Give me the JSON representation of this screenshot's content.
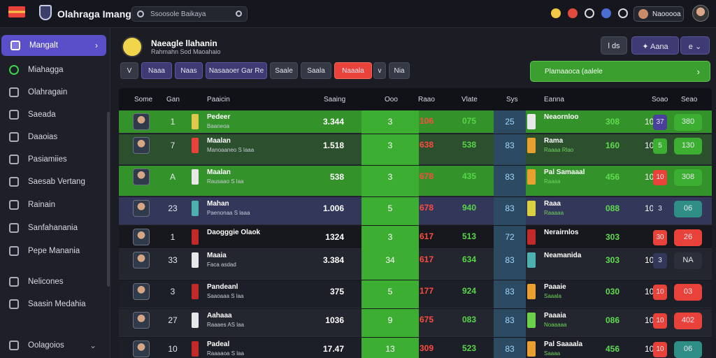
{
  "topbar": {
    "title": "Olahraga Imangah",
    "search_placeholder": "Ssoosole Baikaya",
    "user_label": "Naooooa"
  },
  "sidebar": {
    "items": [
      {
        "label": "Mangalt",
        "active": true
      },
      {
        "label": "Miahagga"
      },
      {
        "label": "Olahragain"
      },
      {
        "label": "Saeada"
      },
      {
        "label": "Daaoias"
      },
      {
        "label": "Pasiamiies"
      },
      {
        "label": "Saesab Vertang"
      },
      {
        "label": "Rainain"
      },
      {
        "label": "Sanfahanania"
      },
      {
        "label": "Pepe Manania"
      },
      {
        "label": "Nelicones"
      },
      {
        "label": "Saasin Medahia"
      },
      {
        "label": "Oolagoios"
      }
    ]
  },
  "header": {
    "club_name": "Naeagle llahanin",
    "club_sub": "Rahmahn Sod Maoahaio",
    "btn1": "l ds",
    "btn2": "Aana",
    "btn3": "e"
  },
  "filters": [
    {
      "label": "V"
    },
    {
      "label": "Naaa"
    },
    {
      "label": "Naas"
    },
    {
      "label": "Nasaaoer Gar Re"
    },
    {
      "label": "Saale"
    },
    {
      "label": "Saala"
    },
    {
      "label": "Naaala"
    },
    {
      "label": "v"
    },
    {
      "label": "Nia"
    }
  ],
  "promo": {
    "label": "Plamaaoca (aalele"
  },
  "table": {
    "headers": [
      "Some",
      "Gan",
      "Paaicin",
      "Saaing",
      "Ooo",
      "Raao",
      "Vlate",
      "Sys",
      "Eanna",
      "Soao",
      "Seao"
    ],
    "rows": [
      {
        "num": "1",
        "name": "Pedeer",
        "sub": "Baaneoa",
        "val": "3.344",
        "g": "3",
        "red": "106",
        "grn": "075",
        "b": "25",
        "name2": "Neaornloo",
        "sub2": "",
        "g2": "308",
        "n3": "10",
        "sq": "37",
        "btn": "380",
        "style": "hl-green"
      },
      {
        "num": "7",
        "name": "Maalan",
        "sub": "Manoaaneo S laaa",
        "val": "1.518",
        "g": "3",
        "red": "638",
        "grn": "538",
        "b": "83",
        "name2": "Rama",
        "sub2": "Raaaa Rlao",
        "g2": "160",
        "n3": "10",
        "sq": "5",
        "btn": "130",
        "style": "hl-greenish"
      },
      {
        "num": "A",
        "name": "Maalan",
        "sub": "Rausaao S laa",
        "val": "538",
        "g": "3",
        "red": "678",
        "grn": "435",
        "b": "83",
        "name2": "Pal Samaaal",
        "sub2": "Raaaa",
        "g2": "456",
        "n3": "10",
        "sq": "10",
        "btn": "308",
        "style": "hl-green"
      },
      {
        "num": "23",
        "name": "Mahan",
        "sub": "Paenonaa S laaa",
        "val": "1.006",
        "g": "5",
        "red": "678",
        "grn": "940",
        "b": "83",
        "name2": "Raaa",
        "sub2": "Raaaaa",
        "g2": "088",
        "n3": "10",
        "sq": "3",
        "btn": "06",
        "style": "hl-blue"
      },
      {
        "num": "1",
        "name": "Daogggie Olaok",
        "sub": "",
        "val": "1324",
        "g": "3",
        "red": "617",
        "grn": "513",
        "b": "72",
        "name2": "Nerairnlos",
        "sub2": "",
        "g2": "303",
        "n3": "",
        "sq": "30",
        "btn": "26",
        "style": "hl-dark"
      },
      {
        "num": "33",
        "name": "Maaia",
        "sub": "Faca asdad",
        "val": "3.384",
        "g": "34",
        "red": "617",
        "grn": "634",
        "b": "83",
        "name2": "Neamanida",
        "sub2": "",
        "g2": "303",
        "n3": "10",
        "sq": "3",
        "btn": "NA",
        "style": "alt"
      },
      {
        "num": "3",
        "name": "Pandeanl",
        "sub": "Saaoaaa S laa",
        "val": "375",
        "g": "5",
        "red": "177",
        "grn": "924",
        "b": "83",
        "name2": "Paaaie",
        "sub2": "Saaala",
        "g2": "030",
        "n3": "10",
        "sq": "10",
        "btn": "03",
        "style": ""
      },
      {
        "num": "27",
        "name": "Aahaaa",
        "sub": "Raaaes AS laa",
        "val": "1036",
        "g": "9",
        "red": "675",
        "grn": "083",
        "b": "83",
        "name2": "Paaaia",
        "sub2": "Noaaaaa",
        "g2": "086",
        "n3": "10",
        "sq": "10",
        "btn": "402",
        "style": "alt"
      },
      {
        "num": "10",
        "name": "Padeal",
        "sub": "Raaaaoa S laa",
        "val": "17.47",
        "g": "13",
        "red": "309",
        "grn": "523",
        "b": "83",
        "name2": "Pal Saaaala",
        "sub2": "Saaaa",
        "g2": "456",
        "n3": "10",
        "sq": "10",
        "btn": "06",
        "style": ""
      }
    ]
  }
}
